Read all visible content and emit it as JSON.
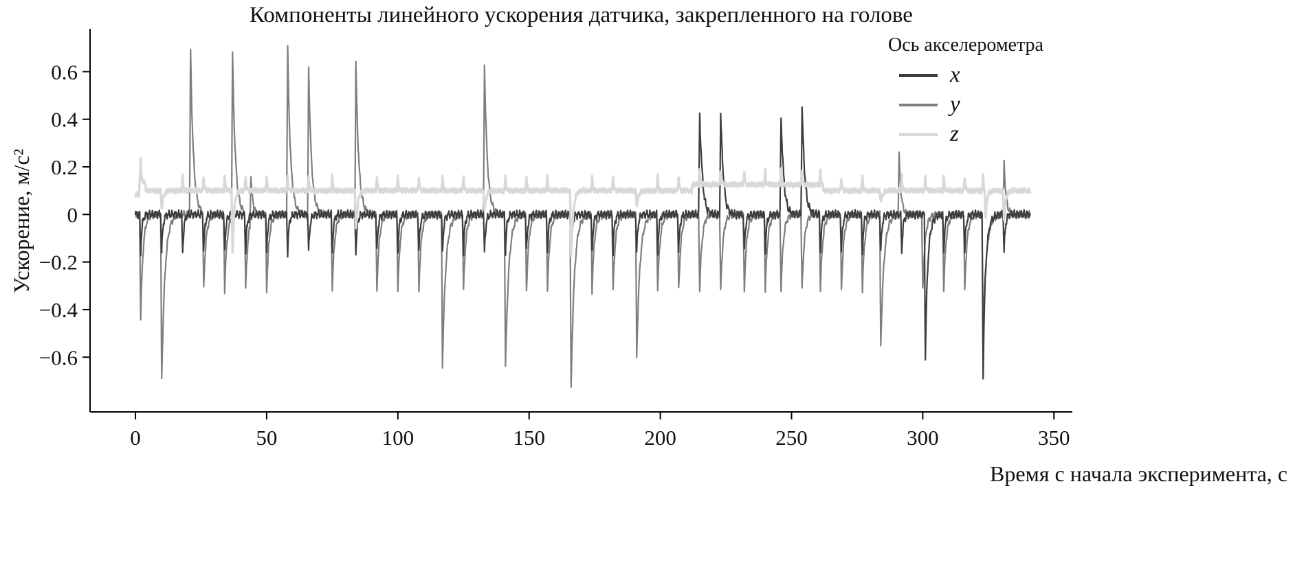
{
  "chart_data": {
    "type": "line",
    "title": "Компоненты линейного ускорения датчика, закрепленного на голове",
    "xlabel": "Время с начала эксперимента, с",
    "ylabel": "Ускорение, м/с²",
    "legend_title": "Ось акселерометра",
    "legend_position": "upper right",
    "grid": false,
    "xlim": [
      -17.3,
      357
    ],
    "ylim": [
      -0.83,
      0.78
    ],
    "xticks": [
      0,
      50,
      100,
      150,
      200,
      250,
      300,
      350
    ],
    "xtick_labels": [
      "0",
      "50",
      "100",
      "150",
      "200",
      "250",
      "300",
      "350"
    ],
    "yticks": [
      -0.6,
      -0.4,
      -0.2,
      0,
      0.2,
      0.4,
      0.6
    ],
    "ytick_labels": [
      "−0.6",
      "−0.4",
      "−0.2",
      "0",
      "0.2",
      "0.4",
      "0.6"
    ],
    "time_range": [
      0,
      341
    ],
    "series": [
      {
        "name": "x",
        "color": "#3d3d3d",
        "baseline": [
          [
            -20,
            360,
            0
          ]
        ],
        "spikes": [
          [
            215,
            0.58,
            1.8
          ],
          [
            223,
            0.58,
            1.8
          ],
          [
            246,
            0.57,
            1.8
          ],
          [
            254,
            0.61,
            1.8
          ],
          [
            301,
            -0.45,
            2.2
          ],
          [
            323,
            -0.52,
            2.2
          ]
        ],
        "minor": {
          "times": [
            2,
            10,
            18,
            26,
            34,
            42,
            50,
            58,
            66,
            75,
            84,
            92,
            100,
            108,
            117,
            125,
            133,
            141,
            149,
            157,
            166,
            174,
            182,
            191,
            199,
            207,
            215,
            223,
            232,
            240,
            246,
            254,
            261,
            269,
            277,
            284,
            292,
            301,
            308,
            316,
            323,
            331
          ],
          "amp": -0.16,
          "width": 1.0
        },
        "ripple": 0.02
      },
      {
        "name": "y",
        "color": "#7e7e7e",
        "baseline": [
          [
            -20,
            360,
            0
          ]
        ],
        "spikes": [
          [
            2,
            -0.44,
            1.8
          ],
          [
            10,
            -0.7,
            2.5
          ],
          [
            21,
            0.69,
            2.2
          ],
          [
            37,
            0.68,
            2.2
          ],
          [
            44,
            0.2,
            1.5
          ],
          [
            58,
            0.7,
            2.2
          ],
          [
            66,
            0.62,
            2.2
          ],
          [
            84,
            0.63,
            2.2
          ],
          [
            117,
            -0.63,
            2.5
          ],
          [
            133,
            0.63,
            2.2
          ],
          [
            141,
            -0.65,
            2.5
          ],
          [
            166,
            -0.73,
            2.5
          ],
          [
            191,
            -0.6,
            2.5
          ],
          [
            284,
            -0.55,
            2.5
          ],
          [
            291,
            0.25,
            1.5
          ],
          [
            323,
            -0.5,
            2.5
          ],
          [
            331,
            0.22,
            1.5
          ]
        ],
        "minor": {
          "times": [
            26,
            34,
            42,
            50,
            75,
            92,
            100,
            108,
            125,
            149,
            157,
            174,
            182,
            199,
            207,
            215,
            223,
            232,
            240,
            246,
            254,
            261,
            269,
            277,
            300,
            308,
            316
          ],
          "amp": -0.32,
          "width": 1.8
        },
        "ripple": 0.016
      },
      {
        "name": "z",
        "color": "#d8d8d8",
        "baseline": [
          [
            -20,
            1.5,
            0.085
          ],
          [
            1.5,
            4,
            0.13
          ],
          [
            4,
            212,
            0.1
          ],
          [
            212,
            262,
            0.125
          ],
          [
            262,
            360,
            0.1
          ]
        ],
        "spikes": [
          [
            2,
            0.04,
            1
          ],
          [
            10,
            -0.13,
            1
          ],
          [
            37,
            -0.26,
            1.2
          ],
          [
            84,
            -0.22,
            1.2
          ],
          [
            133,
            -0.14,
            1
          ],
          [
            166,
            -0.33,
            1.4
          ],
          [
            191,
            -0.12,
            1
          ],
          [
            284,
            -0.1,
            1
          ],
          [
            324,
            -0.12,
            1
          ],
          [
            331,
            -0.18,
            1
          ]
        ],
        "minor": {
          "times": [
            2,
            10,
            18,
            26,
            34,
            42,
            50,
            58,
            66,
            75,
            84,
            92,
            100,
            108,
            117,
            125,
            133,
            141,
            149,
            157,
            166,
            174,
            182,
            191,
            199,
            207,
            215,
            223,
            232,
            240,
            246,
            254,
            261,
            269,
            277,
            284,
            292,
            301,
            308,
            316,
            323,
            331
          ],
          "amp": 0.06,
          "width": 0.5
        },
        "ripple": 0.012
      }
    ]
  }
}
